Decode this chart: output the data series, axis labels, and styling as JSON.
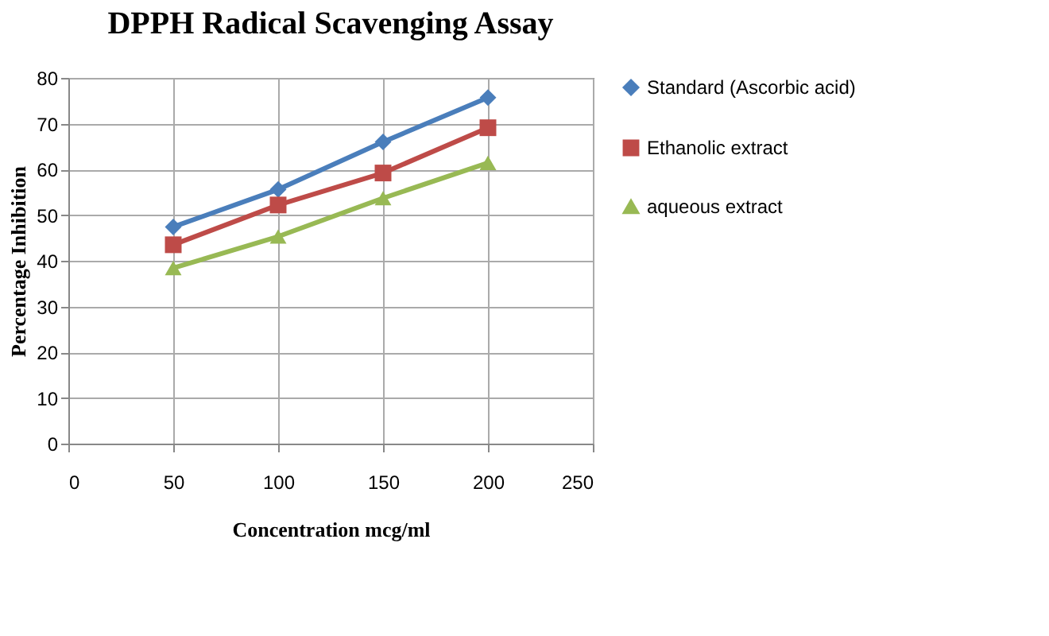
{
  "chart_data": {
    "type": "line",
    "title": "DPPH Radical Scavenging Assay",
    "xlabel": "Concentration mcg/ml",
    "ylabel": "Percentage Inhibition",
    "x": [
      50,
      100,
      150,
      200
    ],
    "series": [
      {
        "name": "Standard (Ascorbic acid)",
        "color": "#4a7ebb",
        "marker": "diamond",
        "values": [
          47.4,
          55.6,
          66,
          75.7
        ]
      },
      {
        "name": "Ethanolic extract",
        "color": "#be4b48",
        "marker": "square",
        "values": [
          43.5,
          52.2,
          59.2,
          69.1
        ]
      },
      {
        "name": "aqueous extract",
        "color": "#98b954",
        "marker": "triangle",
        "values": [
          38.4,
          45.3,
          53.7,
          61.4
        ]
      }
    ],
    "xlim": [
      0,
      250
    ],
    "xticks": [
      0,
      50,
      100,
      150,
      200,
      250
    ],
    "ylim": [
      0,
      80
    ],
    "yticks": [
      0,
      10,
      20,
      30,
      40,
      50,
      60,
      70,
      80
    ],
    "grid": true,
    "legend": "right",
    "line_style": "solid"
  }
}
